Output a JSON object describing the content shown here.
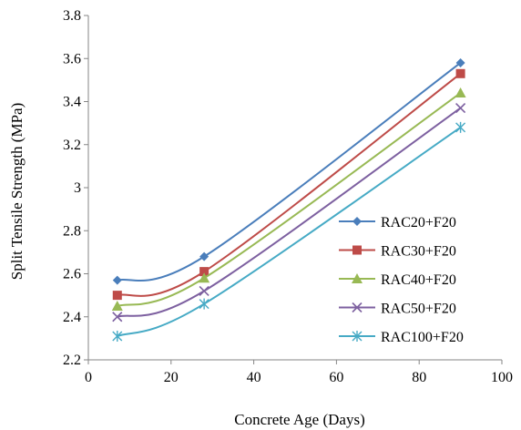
{
  "chart_data": {
    "type": "line",
    "title": "",
    "xlabel": "Concrete Age (Days)",
    "ylabel": "Split Tensile Strength (MPa)",
    "xlim": [
      0,
      100
    ],
    "ylim": [
      2.2,
      3.8
    ],
    "xticks": [
      "0",
      "20",
      "40",
      "60",
      "80",
      "100"
    ],
    "yticks": [
      "2.2",
      "2.4",
      "2.6",
      "2.8",
      "3",
      "3.2",
      "3.4",
      "3.6",
      "3.8"
    ],
    "grid": false,
    "legend_position": "right",
    "x": [
      7,
      28,
      90
    ],
    "series": [
      {
        "name": "RAC20+F20",
        "values": [
          2.57,
          2.68,
          3.58
        ],
        "color": "#4a7ebb",
        "marker": "diamond"
      },
      {
        "name": "RAC30+F20",
        "values": [
          2.5,
          2.61,
          3.53
        ],
        "color": "#be4b48",
        "marker": "square"
      },
      {
        "name": "RAC40+F20",
        "values": [
          2.45,
          2.58,
          3.44
        ],
        "color": "#98b954",
        "marker": "triangle"
      },
      {
        "name": "RAC50+F20",
        "values": [
          2.4,
          2.52,
          3.37
        ],
        "color": "#7d60a0",
        "marker": "x"
      },
      {
        "name": "RAC100+F20",
        "values": [
          2.31,
          2.46,
          3.28
        ],
        "color": "#46aac5",
        "marker": "star"
      }
    ]
  }
}
